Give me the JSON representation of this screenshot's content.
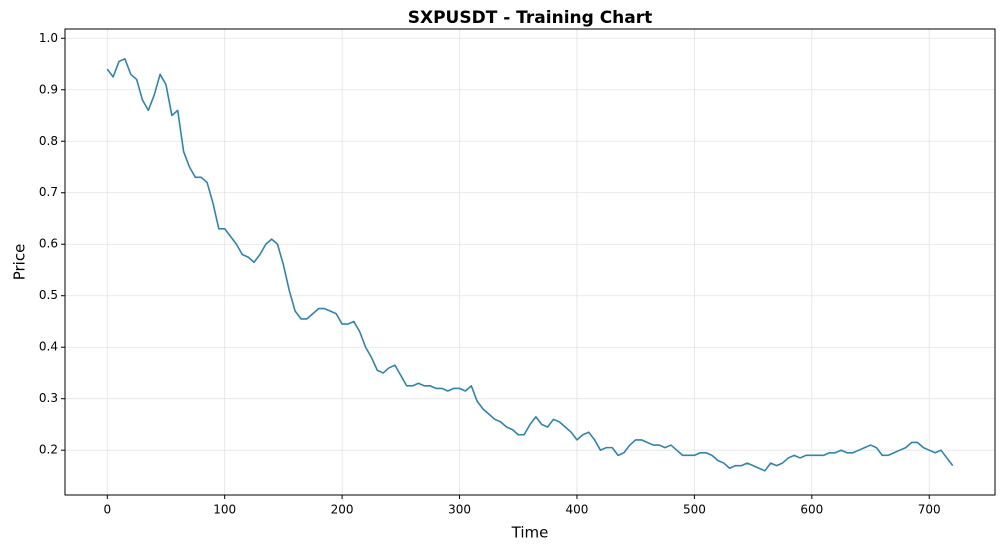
{
  "chart_data": {
    "type": "line",
    "title": "SXPUSDT - Training Chart",
    "x_label": "Time",
    "y_label": "Price",
    "x": [
      0,
      5,
      10,
      15,
      20,
      25,
      30,
      35,
      40,
      45,
      50,
      55,
      60,
      65,
      70,
      75,
      80,
      85,
      90,
      95,
      100,
      105,
      110,
      115,
      120,
      125,
      130,
      135,
      140,
      145,
      150,
      155,
      160,
      165,
      170,
      175,
      180,
      185,
      190,
      195,
      200,
      205,
      210,
      215,
      220,
      225,
      230,
      235,
      240,
      245,
      250,
      255,
      260,
      265,
      270,
      275,
      280,
      285,
      290,
      295,
      300,
      305,
      310,
      315,
      320,
      325,
      330,
      335,
      340,
      345,
      350,
      355,
      360,
      365,
      370,
      375,
      380,
      385,
      390,
      395,
      400,
      405,
      410,
      415,
      420,
      425,
      430,
      435,
      440,
      445,
      450,
      455,
      460,
      465,
      470,
      475,
      480,
      485,
      490,
      495,
      500,
      505,
      510,
      515,
      520,
      525,
      530,
      535,
      540,
      545,
      550,
      555,
      560,
      565,
      570,
      575,
      580,
      585,
      590,
      595,
      600,
      605,
      610,
      615,
      620,
      625,
      630,
      635,
      640,
      645,
      650,
      655,
      660,
      665,
      670,
      675,
      680,
      685,
      690,
      695,
      700,
      705,
      710,
      715,
      720
    ],
    "series": [
      {
        "color": "#2e86ab",
        "values": [
          0.94,
          0.925,
          0.955,
          0.96,
          0.93,
          0.92,
          0.88,
          0.86,
          0.89,
          0.93,
          0.91,
          0.85,
          0.86,
          0.78,
          0.75,
          0.73,
          0.73,
          0.72,
          0.68,
          0.63,
          0.63,
          0.615,
          0.6,
          0.58,
          0.575,
          0.565,
          0.58,
          0.6,
          0.61,
          0.6,
          0.56,
          0.51,
          0.47,
          0.455,
          0.455,
          0.465,
          0.475,
          0.475,
          0.47,
          0.465,
          0.445,
          0.445,
          0.45,
          0.43,
          0.4,
          0.38,
          0.355,
          0.35,
          0.36,
          0.365,
          0.345,
          0.325,
          0.325,
          0.33,
          0.325,
          0.325,
          0.32,
          0.32,
          0.315,
          0.32,
          0.32,
          0.315,
          0.325,
          0.295,
          0.28,
          0.27,
          0.26,
          0.255,
          0.245,
          0.24,
          0.23,
          0.23,
          0.25,
          0.265,
          0.25,
          0.245,
          0.26,
          0.255,
          0.245,
          0.235,
          0.22,
          0.23,
          0.235,
          0.22,
          0.2,
          0.205,
          0.205,
          0.19,
          0.195,
          0.21,
          0.22,
          0.22,
          0.215,
          0.21,
          0.21,
          0.205,
          0.21,
          0.2,
          0.19,
          0.19,
          0.19,
          0.195,
          0.195,
          0.19,
          0.18,
          0.175,
          0.165,
          0.17,
          0.17,
          0.175,
          0.17,
          0.165,
          0.16,
          0.175,
          0.17,
          0.175,
          0.185,
          0.19,
          0.185,
          0.19,
          0.19,
          0.19,
          0.19,
          0.195,
          0.195,
          0.2,
          0.195,
          0.195,
          0.2,
          0.205,
          0.21,
          0.205,
          0.19,
          0.19,
          0.195,
          0.2,
          0.205,
          0.215,
          0.215,
          0.205,
          0.2,
          0.195,
          0.2,
          0.185,
          0.17
        ]
      }
    ],
    "xlim": [
      -36,
      756
    ],
    "ylim": [
      0.113,
      1.018
    ],
    "xticks": [
      0,
      100,
      200,
      300,
      400,
      500,
      600,
      700
    ],
    "yticks": [
      0.2,
      0.3,
      0.4,
      0.5,
      0.6,
      0.7,
      0.8,
      0.9,
      {
        "value": 1,
        "label": "1.0"
      }
    ],
    "grid": true
  }
}
